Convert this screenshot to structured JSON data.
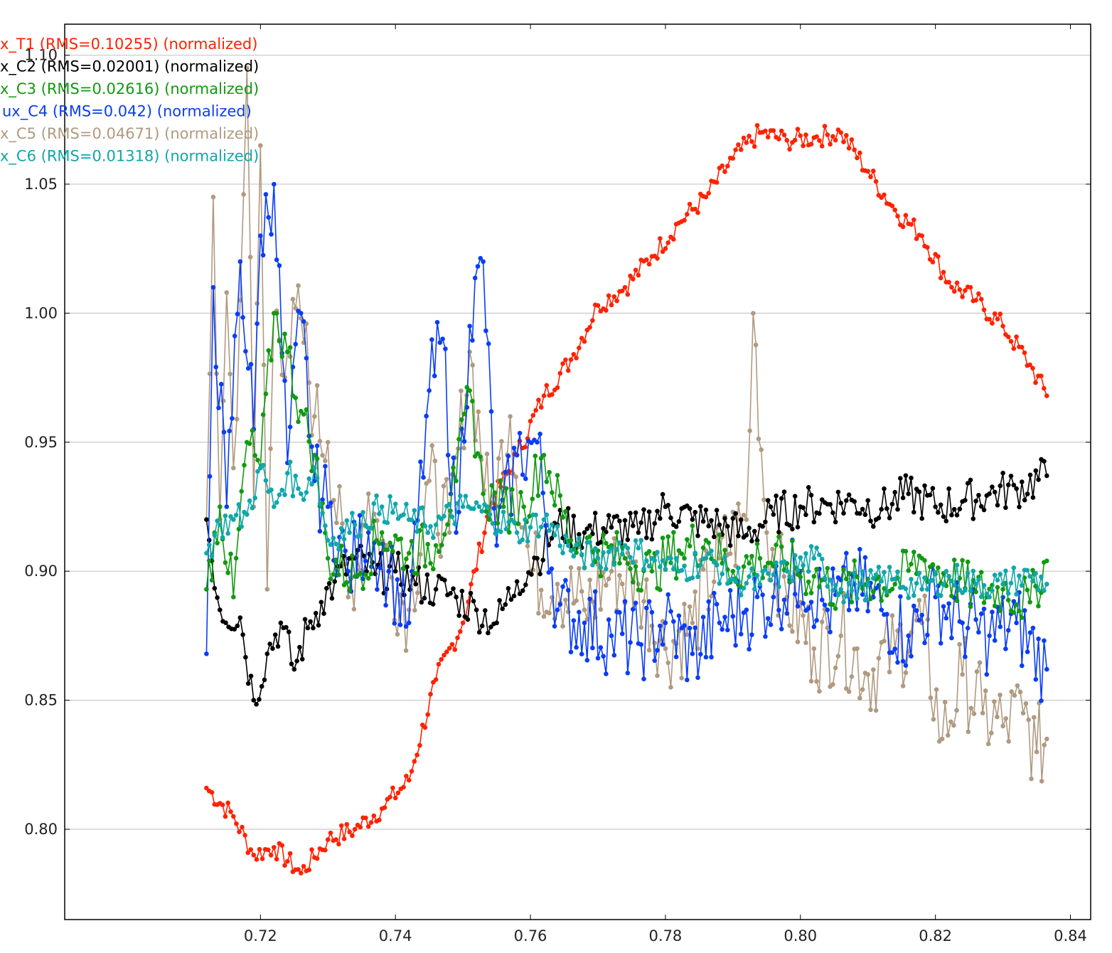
{
  "chart_data": {
    "type": "line",
    "title": "",
    "xlabel": "",
    "ylabel": "",
    "xlim": [
      0.691,
      0.843
    ],
    "ylim": [
      0.765,
      1.112
    ],
    "xticks": [
      0.72,
      0.74,
      0.76,
      0.78,
      0.8,
      0.82,
      0.84
    ],
    "xtick_labels": [
      "0.72",
      "0.74",
      "0.76",
      "0.78",
      "0.80",
      "0.82",
      "0.84"
    ],
    "yticks": [
      0.8,
      0.85,
      0.9,
      0.95,
      1.0,
      1.05
    ],
    "ytick_labels": [
      "0.80",
      "0.85",
      "0.90",
      "0.95",
      "1.00",
      "1.05"
    ],
    "y_top_label": "1.10",
    "grid": "horizontal",
    "legend_position": "top-left",
    "legend": [
      "x_T1 (RMS=0.10255) (normalized)",
      "x_C2 (RMS=0.02001) (normalized)",
      "x_C3 (RMS=0.02616) (normalized)",
      "ux_C4 (RMS=0.042) (normalized)",
      "x_C5 (RMS=0.04671) (normalized)",
      "x_C6 (RMS=0.01318) (normalized)"
    ],
    "series": [
      {
        "name": "x_T1 (RMS=0.10255) (normalized)",
        "color": "#ff2200",
        "x": [
          0.712,
          0.716,
          0.719,
          0.722,
          0.726,
          0.73,
          0.734,
          0.738,
          0.742,
          0.746,
          0.75,
          0.754,
          0.758,
          0.762,
          0.766,
          0.77,
          0.774,
          0.778,
          0.782,
          0.786,
          0.79,
          0.794,
          0.798,
          0.802,
          0.806,
          0.81,
          0.814,
          0.818,
          0.822,
          0.826,
          0.83,
          0.834,
          0.8365
        ],
        "y": [
          0.816,
          0.805,
          0.79,
          0.793,
          0.783,
          0.796,
          0.8,
          0.808,
          0.819,
          0.858,
          0.88,
          0.925,
          0.945,
          0.968,
          0.982,
          1.003,
          1.01,
          1.022,
          1.035,
          1.045,
          1.06,
          1.07,
          1.067,
          1.068,
          1.07,
          1.055,
          1.04,
          1.03,
          1.012,
          1.005,
          0.995,
          0.98,
          0.968
        ]
      },
      {
        "name": "x_C2 (RMS=0.02001) (normalized)",
        "color": "#000000",
        "x": [
          0.712,
          0.714,
          0.717,
          0.719,
          0.721,
          0.723,
          0.725,
          0.727,
          0.729,
          0.731,
          0.734,
          0.737,
          0.74,
          0.743,
          0.746,
          0.749,
          0.752,
          0.755,
          0.758,
          0.761,
          0.764,
          0.768,
          0.772,
          0.776,
          0.78,
          0.784,
          0.788,
          0.792,
          0.796,
          0.8,
          0.804,
          0.808,
          0.812,
          0.816,
          0.82,
          0.824,
          0.828,
          0.832,
          0.8365
        ],
        "y": [
          0.92,
          0.885,
          0.882,
          0.85,
          0.868,
          0.88,
          0.862,
          0.878,
          0.888,
          0.896,
          0.905,
          0.899,
          0.9,
          0.895,
          0.893,
          0.89,
          0.885,
          0.88,
          0.896,
          0.905,
          0.918,
          0.915,
          0.917,
          0.915,
          0.925,
          0.92,
          0.918,
          0.914,
          0.922,
          0.925,
          0.926,
          0.927,
          0.924,
          0.93,
          0.925,
          0.927,
          0.93,
          0.932,
          0.937
        ]
      },
      {
        "name": "x_C3 (RMS=0.02616) (normalized)",
        "color": "#119911",
        "x": [
          0.712,
          0.714,
          0.716,
          0.718,
          0.72,
          0.722,
          0.724,
          0.726,
          0.728,
          0.73,
          0.734,
          0.738,
          0.742,
          0.746,
          0.749,
          0.751,
          0.753,
          0.756,
          0.759,
          0.762,
          0.766,
          0.77,
          0.774,
          0.778,
          0.782,
          0.786,
          0.79,
          0.794,
          0.798,
          0.802,
          0.806,
          0.81,
          0.814,
          0.818,
          0.822,
          0.826,
          0.83,
          0.834,
          0.8365
        ],
        "y": [
          0.893,
          0.925,
          0.89,
          0.95,
          0.94,
          1.0,
          0.985,
          0.962,
          0.945,
          0.905,
          0.898,
          0.915,
          0.907,
          0.91,
          0.935,
          0.97,
          0.93,
          0.925,
          0.925,
          0.945,
          0.912,
          0.908,
          0.905,
          0.9,
          0.908,
          0.912,
          0.9,
          0.905,
          0.903,
          0.898,
          0.892,
          0.897,
          0.895,
          0.905,
          0.898,
          0.892,
          0.893,
          0.888,
          0.904
        ]
      },
      {
        "name": "ux_C4 (RMS=0.042) (normalized)",
        "color": "#0a3df5",
        "x": [
          0.712,
          0.713,
          0.715,
          0.717,
          0.719,
          0.72,
          0.722,
          0.724,
          0.726,
          0.728,
          0.73,
          0.733,
          0.736,
          0.739,
          0.742,
          0.745,
          0.747,
          0.749,
          0.751,
          0.753,
          0.755,
          0.758,
          0.761,
          0.764,
          0.768,
          0.772,
          0.776,
          0.78,
          0.784,
          0.788,
          0.792,
          0.796,
          0.8,
          0.804,
          0.808,
          0.812,
          0.816,
          0.82,
          0.824,
          0.828,
          0.832,
          0.8365
        ],
        "y": [
          0.868,
          1.01,
          0.925,
          1.02,
          0.955,
          1.03,
          1.05,
          0.942,
          1.0,
          0.935,
          0.925,
          0.9,
          0.915,
          0.9,
          0.88,
          0.97,
          0.99,
          0.915,
          0.995,
          1.02,
          0.91,
          0.945,
          0.95,
          0.885,
          0.88,
          0.875,
          0.872,
          0.88,
          0.868,
          0.88,
          0.885,
          0.89,
          0.9,
          0.885,
          0.895,
          0.885,
          0.875,
          0.89,
          0.88,
          0.875,
          0.88,
          0.862
        ]
      },
      {
        "name": "x_C5 (RMS=0.04671) (normalized)",
        "color": "#b09a80",
        "x": [
          0.712,
          0.713,
          0.714,
          0.715,
          0.716,
          0.717,
          0.718,
          0.719,
          0.72,
          0.721,
          0.722,
          0.724,
          0.726,
          0.728,
          0.73,
          0.733,
          0.736,
          0.739,
          0.742,
          0.745,
          0.748,
          0.751,
          0.754,
          0.757,
          0.76,
          0.764,
          0.768,
          0.772,
          0.776,
          0.78,
          0.784,
          0.788,
          0.792,
          0.793,
          0.795,
          0.798,
          0.802,
          0.806,
          0.81,
          0.814,
          0.818,
          0.821,
          0.824,
          0.827,
          0.83,
          0.833,
          0.835,
          0.8365
        ],
        "y": [
          0.92,
          1.045,
          0.92,
          1.008,
          0.94,
          1.005,
          1.095,
          0.925,
          1.065,
          0.893,
          1.0,
          0.985,
          0.998,
          0.96,
          0.95,
          0.89,
          0.93,
          0.9,
          0.885,
          0.935,
          0.915,
          0.985,
          0.92,
          0.96,
          0.9,
          0.895,
          0.885,
          0.9,
          0.895,
          0.87,
          0.88,
          0.905,
          0.92,
          1.0,
          0.915,
          0.89,
          0.87,
          0.875,
          0.86,
          0.87,
          0.88,
          0.835,
          0.86,
          0.845,
          0.84,
          0.845,
          0.83,
          0.835
        ]
      },
      {
        "name": "x_C6 (RMS=0.01318) (normalized)",
        "color": "#11a6aa",
        "x": [
          0.712,
          0.714,
          0.716,
          0.718,
          0.72,
          0.722,
          0.724,
          0.726,
          0.728,
          0.73,
          0.734,
          0.738,
          0.742,
          0.746,
          0.75,
          0.754,
          0.758,
          0.762,
          0.766,
          0.77,
          0.774,
          0.778,
          0.782,
          0.786,
          0.79,
          0.794,
          0.798,
          0.802,
          0.806,
          0.81,
          0.814,
          0.818,
          0.822,
          0.826,
          0.83,
          0.834,
          0.8365
        ],
        "y": [
          0.907,
          0.918,
          0.92,
          0.922,
          0.94,
          0.925,
          0.938,
          0.93,
          0.94,
          0.912,
          0.918,
          0.925,
          0.92,
          0.918,
          0.925,
          0.922,
          0.915,
          0.92,
          0.908,
          0.905,
          0.91,
          0.905,
          0.9,
          0.905,
          0.897,
          0.895,
          0.9,
          0.905,
          0.893,
          0.895,
          0.897,
          0.893,
          0.898,
          0.895,
          0.895,
          0.898,
          0.895
        ]
      }
    ]
  }
}
